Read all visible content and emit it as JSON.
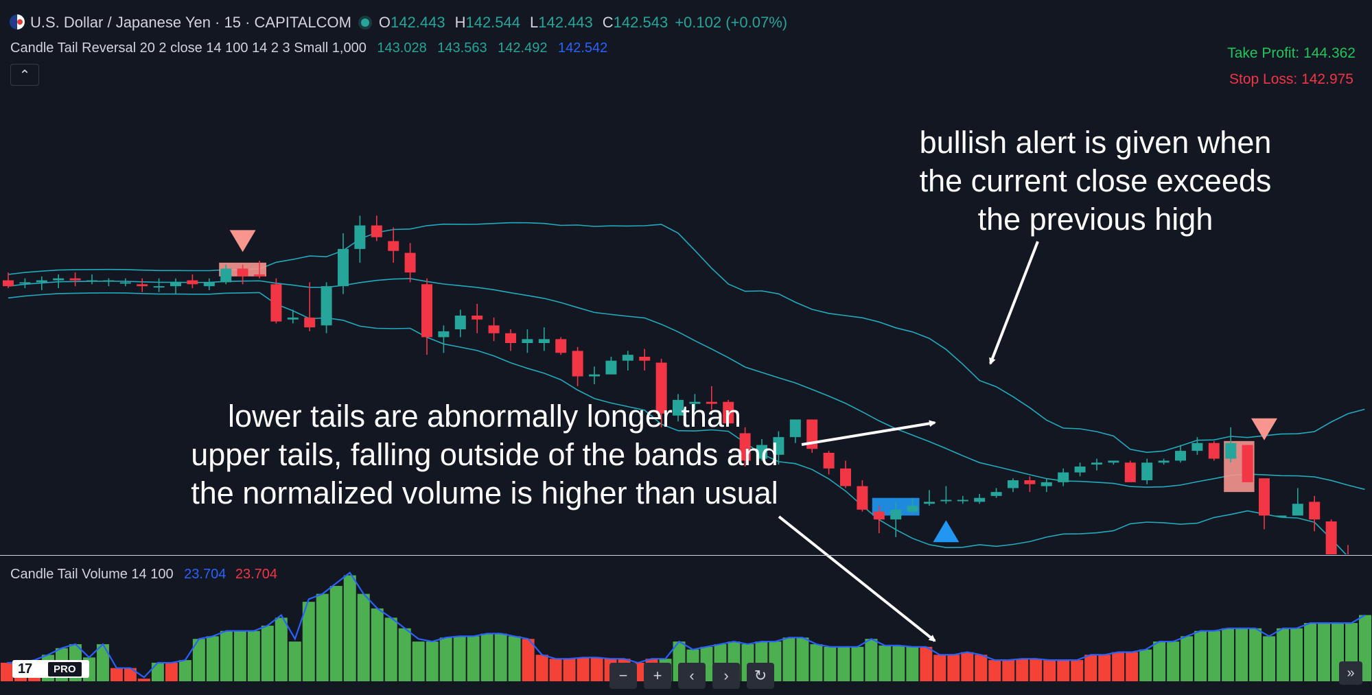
{
  "header": {
    "symbol": "U.S. Dollar / Japanese Yen · 15 · CAPITALCOM",
    "o_label": "O",
    "o_value": "142.443",
    "h_label": "H",
    "h_value": "142.544",
    "l_label": "L",
    "l_value": "142.443",
    "c_label": "C",
    "c_value": "142.543",
    "change": "+0.102 (+0.07%)"
  },
  "indicator": {
    "name": "Candle Tail Reversal 20 2 close 14 100 14 2 3 Small 1,000",
    "v1": "143.028",
    "v2": "143.563",
    "v3": "142.492",
    "v4": "142.542"
  },
  "take_profit": "Take Profit: 144.362",
  "stop_loss": "Stop Loss: 142.975",
  "volume_indicator": {
    "name": "Candle Tail Volume 14 100",
    "v1": "23.704",
    "v2": "23.704"
  },
  "annotations": {
    "bullish_1": "bullish alert is given when",
    "bullish_2": "the current close exceeds",
    "bullish_3": "the previous high",
    "tails_1": "lower tails are abnormally longer than",
    "tails_2": "upper tails, falling outside of the bands and",
    "tails_3": "the normalized volume is higher than usual"
  },
  "logo": {
    "mark": "17",
    "pro": "PRO"
  },
  "nav": {
    "zoom_out": "−",
    "zoom_in": "+",
    "scroll_left": "‹",
    "scroll_right": "›",
    "reset": "↻",
    "go_right": "»"
  },
  "colors": {
    "up": "#26a69a",
    "down": "#f23645",
    "band": "#26c6da",
    "highlight_blue": "#2196f3",
    "highlight_red": "#f7958f",
    "vol_up": "#4caf50",
    "vol_down": "#f44336",
    "vol_line": "#2962ff",
    "bg": "#131722"
  },
  "chart_data": [
    {
      "type": "candlestick",
      "symbol": "USDJPY",
      "timeframe": "15",
      "ylim": [
        141.55,
        144.0
      ],
      "candles": [
        [
          142.92,
          142.96,
          142.88,
          142.89
        ],
        [
          142.91,
          142.93,
          142.88,
          142.91
        ],
        [
          142.91,
          142.94,
          142.87,
          142.92
        ],
        [
          142.92,
          142.95,
          142.88,
          142.93
        ],
        [
          142.93,
          142.96,
          142.89,
          142.92
        ],
        [
          142.92,
          142.95,
          142.9,
          142.92
        ],
        [
          142.92,
          142.93,
          142.89,
          142.92
        ],
        [
          142.91,
          142.93,
          142.89,
          142.91
        ],
        [
          142.9,
          142.93,
          142.86,
          142.89
        ],
        [
          142.89,
          142.93,
          142.86,
          142.89
        ],
        [
          142.89,
          142.93,
          142.85,
          142.91
        ],
        [
          142.92,
          142.95,
          142.88,
          142.9
        ],
        [
          142.89,
          142.93,
          142.87,
          142.91
        ],
        [
          142.91,
          143.0,
          142.9,
          142.98
        ],
        [
          142.98,
          143.0,
          142.9,
          142.94
        ],
        [
          142.95,
          143.02,
          142.93,
          142.94
        ],
        [
          142.9,
          142.93,
          142.7,
          142.71
        ],
        [
          142.72,
          142.77,
          142.7,
          142.73
        ],
        [
          142.73,
          142.91,
          142.66,
          142.68
        ],
        [
          142.69,
          142.91,
          142.65,
          142.89
        ],
        [
          142.89,
          143.16,
          142.85,
          143.08
        ],
        [
          143.08,
          143.25,
          143.01,
          143.2
        ],
        [
          143.2,
          143.25,
          143.12,
          143.14
        ],
        [
          143.12,
          143.19,
          143.01,
          143.07
        ],
        [
          143.06,
          143.11,
          142.91,
          142.96
        ],
        [
          142.9,
          142.93,
          142.54,
          142.63
        ],
        [
          142.63,
          142.69,
          142.55,
          142.66
        ],
        [
          142.67,
          142.77,
          142.63,
          142.74
        ],
        [
          142.74,
          142.8,
          142.65,
          142.72
        ],
        [
          142.69,
          142.73,
          142.61,
          142.65
        ],
        [
          142.65,
          142.67,
          142.56,
          142.6
        ],
        [
          142.6,
          142.67,
          142.55,
          142.62
        ],
        [
          142.6,
          142.68,
          142.56,
          142.62
        ],
        [
          142.62,
          142.63,
          142.54,
          142.55
        ],
        [
          142.56,
          142.58,
          142.38,
          142.43
        ],
        [
          142.43,
          142.48,
          142.39,
          142.44
        ],
        [
          142.44,
          142.53,
          142.44,
          142.51
        ],
        [
          142.51,
          142.56,
          142.46,
          142.54
        ],
        [
          142.53,
          142.57,
          142.46,
          142.51
        ],
        [
          142.5,
          142.52,
          142.17,
          142.24
        ],
        [
          142.23,
          142.34,
          142.2,
          142.31
        ],
        [
          142.29,
          142.34,
          142.26,
          142.3
        ],
        [
          142.3,
          142.38,
          142.26,
          142.29
        ],
        [
          142.3,
          142.31,
          142.19,
          142.19
        ],
        [
          142.14,
          142.17,
          141.97,
          142.0
        ],
        [
          142.01,
          142.11,
          142.0,
          142.08
        ],
        [
          142.03,
          142.15,
          141.98,
          142.12
        ],
        [
          142.12,
          142.21,
          142.09,
          142.21
        ],
        [
          142.21,
          142.21,
          142.04,
          142.06
        ],
        [
          142.04,
          142.05,
          141.93,
          141.96
        ],
        [
          141.96,
          142.0,
          141.86,
          141.87
        ],
        [
          141.87,
          141.9,
          141.74,
          141.75
        ],
        [
          141.74,
          141.77,
          141.63,
          141.7
        ],
        [
          141.7,
          141.79,
          141.61,
          141.75
        ],
        [
          141.74,
          141.81,
          141.73,
          141.77
        ],
        [
          141.78,
          141.85,
          141.77,
          141.79
        ],
        [
          141.8,
          141.87,
          141.78,
          141.8
        ],
        [
          141.8,
          141.82,
          141.78,
          141.8
        ],
        [
          141.79,
          141.83,
          141.78,
          141.81
        ],
        [
          141.82,
          141.86,
          141.81,
          141.84
        ],
        [
          141.86,
          141.91,
          141.84,
          141.9
        ],
        [
          141.9,
          141.92,
          141.84,
          141.88
        ],
        [
          141.87,
          141.91,
          141.84,
          141.89
        ],
        [
          141.89,
          141.96,
          141.87,
          141.94
        ],
        [
          141.94,
          141.99,
          141.92,
          141.97
        ],
        [
          141.98,
          142.01,
          141.95,
          141.99
        ],
        [
          141.99,
          142.0,
          141.98,
          142.0
        ],
        [
          141.99,
          142.0,
          141.89,
          141.89
        ],
        [
          141.9,
          142.01,
          141.88,
          141.99
        ],
        [
          141.99,
          142.01,
          141.98,
          142.0
        ],
        [
          142.0,
          142.08,
          141.99,
          142.05
        ],
        [
          142.05,
          142.12,
          142.03,
          142.09
        ],
        [
          142.09,
          142.1,
          142.0,
          142.01
        ],
        [
          142.01,
          142.17,
          141.99,
          142.09
        ],
        [
          142.08,
          142.08,
          141.89,
          141.89
        ],
        [
          141.91,
          141.91,
          141.65,
          141.72
        ],
        [
          141.72,
          141.72,
          141.72,
          141.72
        ],
        [
          141.72,
          141.86,
          141.72,
          141.78
        ],
        [
          141.79,
          141.82,
          141.64,
          141.7
        ],
        [
          141.69,
          141.7,
          141.44,
          141.48
        ],
        [
          141.48,
          141.57,
          141.37,
          141.42
        ],
        [
          141.42,
          141.47,
          141.38,
          141.45
        ]
      ]
    },
    {
      "type": "bar",
      "name": "Candle Tail Volume 14 100",
      "ylim": [
        0,
        100
      ],
      "values": [
        14,
        14,
        16,
        20,
        25,
        28,
        18,
        28,
        10,
        10,
        2,
        14,
        14,
        16,
        32,
        34,
        38,
        38,
        38,
        42,
        48,
        30,
        60,
        66,
        72,
        80,
        66,
        55,
        48,
        40,
        30,
        30,
        33,
        34,
        34,
        36,
        36,
        34,
        32,
        20,
        17,
        17,
        18,
        18,
        17,
        17,
        14,
        17,
        17,
        30,
        24,
        26,
        28,
        30,
        28,
        30,
        30,
        33,
        33,
        28,
        26,
        26,
        26,
        32,
        27,
        27,
        26,
        26,
        20,
        20,
        22,
        20,
        16,
        16,
        17,
        17,
        16,
        16,
        16,
        20,
        20,
        22,
        22,
        24,
        30,
        30,
        34,
        38,
        38,
        40,
        40,
        40,
        34,
        40,
        40,
        44,
        44,
        44,
        44,
        50
      ],
      "up": [
        false,
        false,
        false,
        true,
        true,
        true,
        true,
        true,
        false,
        false,
        false,
        true,
        false,
        true,
        true,
        true,
        true,
        true,
        true,
        true,
        true,
        true,
        true,
        true,
        true,
        true,
        true,
        true,
        true,
        true,
        true,
        true,
        true,
        true,
        true,
        true,
        true,
        true,
        false,
        false,
        false,
        false,
        false,
        false,
        false,
        false,
        false,
        false,
        true,
        true,
        true,
        true,
        true,
        true,
        true,
        true,
        true,
        true,
        true,
        true,
        true,
        true,
        true,
        true,
        true,
        true,
        true,
        false,
        false,
        false,
        false,
        false,
        false,
        false,
        false,
        false,
        false,
        false,
        false,
        false,
        false,
        false,
        false,
        true,
        true,
        true,
        true,
        true,
        true,
        true,
        true,
        true,
        true,
        true,
        true,
        true,
        true,
        true,
        true,
        true
      ],
      "line": [
        14,
        14,
        16,
        20,
        25,
        28,
        18,
        28,
        10,
        10,
        3,
        14,
        14,
        16,
        32,
        34,
        38,
        38,
        38,
        42,
        50,
        32,
        62,
        66,
        74,
        82,
        66,
        55,
        48,
        40,
        32,
        30,
        33,
        34,
        34,
        36,
        36,
        34,
        32,
        20,
        17,
        17,
        18,
        18,
        17,
        17,
        14,
        17,
        17,
        30,
        24,
        26,
        28,
        30,
        28,
        30,
        30,
        33,
        33,
        28,
        26,
        26,
        26,
        32,
        27,
        27,
        26,
        26,
        20,
        20,
        22,
        20,
        16,
        16,
        17,
        17,
        16,
        16,
        16,
        20,
        20,
        22,
        22,
        24,
        30,
        30,
        34,
        38,
        38,
        40,
        40,
        40,
        34,
        40,
        40,
        44,
        44,
        44,
        44,
        50
      ]
    }
  ]
}
